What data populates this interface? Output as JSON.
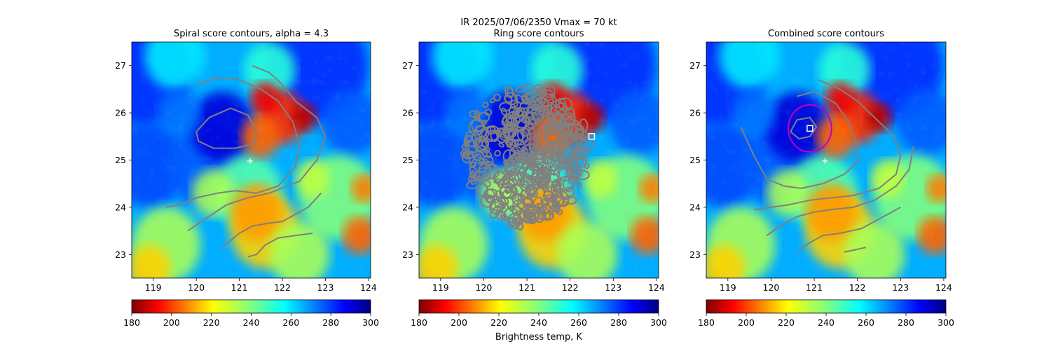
{
  "figure": {
    "suptitle_line1": "IR  2025/07/06/2350    Vmax = 70 kt",
    "colorbar_label": "Brightness temp, K"
  },
  "colors": {
    "contour": "#808080",
    "ring": "#c000c0",
    "marker": "#ffffff"
  },
  "chart_data": [
    {
      "type": "heatmap",
      "title": "Spiral score contours, alpha =  4.3",
      "xlim": [
        118.5,
        124.05
      ],
      "ylim": [
        22.5,
        27.5
      ],
      "xticks": [
        119,
        120,
        121,
        122,
        123,
        124
      ],
      "yticks": [
        23,
        24,
        25,
        26,
        27
      ],
      "xticklabels": [
        "119",
        "120",
        "121",
        "122",
        "123",
        "124"
      ],
      "yticklabels": [
        "23",
        "24",
        "25",
        "26",
        "27"
      ],
      "colormap": "jet_r",
      "clim": [
        180,
        300
      ],
      "colorbar_ticks": [
        180,
        200,
        220,
        240,
        260,
        280,
        300
      ],
      "colorbar_ticklabels": [
        "180",
        "200",
        "220",
        "240",
        "260",
        "280",
        "300"
      ],
      "markers": [
        {
          "symbol": "plus",
          "x": 121.25,
          "y": 24.98
        }
      ],
      "contours": [
        [
          [
            120.0,
            26.6
          ],
          [
            120.5,
            26.75
          ],
          [
            121.0,
            26.7
          ],
          [
            121.5,
            26.5
          ],
          [
            121.9,
            26.25
          ],
          [
            122.25,
            25.8
          ],
          [
            122.4,
            25.3
          ],
          [
            122.3,
            24.85
          ],
          [
            121.9,
            24.45
          ],
          [
            121.4,
            24.3
          ],
          [
            120.9,
            24.35
          ],
          [
            120.5,
            24.3
          ],
          [
            120.0,
            24.2
          ],
          [
            119.6,
            24.05
          ],
          [
            119.3,
            24.0
          ]
        ],
        [
          [
            120.0,
            25.6
          ],
          [
            120.3,
            25.9
          ],
          [
            120.8,
            26.1
          ],
          [
            121.2,
            25.95
          ],
          [
            121.4,
            25.6
          ],
          [
            121.35,
            25.35
          ],
          [
            120.9,
            25.25
          ],
          [
            120.4,
            25.25
          ],
          [
            120.05,
            25.4
          ],
          [
            120.0,
            25.6
          ]
        ],
        [
          [
            121.3,
            27.0
          ],
          [
            121.7,
            26.85
          ],
          [
            122.0,
            26.6
          ],
          [
            122.3,
            26.25
          ],
          [
            122.8,
            25.9
          ],
          [
            123.0,
            25.5
          ],
          [
            122.8,
            25.0
          ],
          [
            122.4,
            24.55
          ],
          [
            121.7,
            24.3
          ],
          [
            121.2,
            24.2
          ],
          [
            120.7,
            24.05
          ],
          [
            120.2,
            23.75
          ],
          [
            119.8,
            23.5
          ]
        ],
        [
          [
            122.9,
            24.3
          ],
          [
            122.6,
            24.0
          ],
          [
            122.0,
            23.7
          ],
          [
            121.6,
            23.65
          ],
          [
            121.3,
            23.6
          ],
          [
            121.0,
            23.45
          ],
          [
            120.8,
            23.3
          ],
          [
            120.6,
            23.15
          ]
        ],
        [
          [
            122.7,
            23.45
          ],
          [
            122.3,
            23.4
          ],
          [
            121.9,
            23.35
          ],
          [
            121.6,
            23.2
          ],
          [
            121.4,
            23.0
          ],
          [
            121.2,
            22.95
          ]
        ]
      ]
    },
    {
      "type": "heatmap",
      "title": "Ring score contours",
      "xlim": [
        118.5,
        124.05
      ],
      "ylim": [
        22.5,
        27.5
      ],
      "xticks": [
        119,
        120,
        121,
        122,
        123,
        124
      ],
      "yticks": [
        23,
        24,
        25,
        26,
        27
      ],
      "xticklabels": [
        "119",
        "120",
        "121",
        "122",
        "123",
        "124"
      ],
      "yticklabels": [
        "23",
        "24",
        "25",
        "26",
        "27"
      ],
      "colormap": "jet_r",
      "clim": [
        180,
        300
      ],
      "colorbar_ticks": [
        180,
        200,
        220,
        240,
        260,
        280,
        300
      ],
      "colorbar_ticklabels": [
        "180",
        "200",
        "220",
        "240",
        "260",
        "280",
        "300"
      ],
      "markers": [
        {
          "symbol": "square",
          "x": 122.5,
          "y": 25.5
        }
      ],
      "dense_contour_region": {
        "center": [
          121.0,
          25.05
        ],
        "extent_x": [
          119.8,
          122.65
        ],
        "extent_y": [
          23.95,
          26.9
        ]
      }
    },
    {
      "type": "heatmap",
      "title": "Combined score contours",
      "xlim": [
        118.5,
        124.05
      ],
      "ylim": [
        22.5,
        27.5
      ],
      "xticks": [
        119,
        120,
        121,
        122,
        123,
        124
      ],
      "yticks": [
        23,
        24,
        25,
        26,
        27
      ],
      "xticklabels": [
        "119",
        "120",
        "121",
        "122",
        "123",
        "124"
      ],
      "yticklabels": [
        "23",
        "24",
        "25",
        "26",
        "27"
      ],
      "colormap": "jet_r",
      "clim": [
        180,
        300
      ],
      "colorbar_ticks": [
        180,
        200,
        220,
        240,
        260,
        280,
        300
      ],
      "colorbar_ticklabels": [
        "180",
        "200",
        "220",
        "240",
        "260",
        "280",
        "300"
      ],
      "markers": [
        {
          "symbol": "plus",
          "x": 121.25,
          "y": 24.98
        },
        {
          "symbol": "square",
          "x": 120.9,
          "y": 25.67
        }
      ],
      "ring": {
        "x": 120.9,
        "y": 25.67,
        "r": 0.5
      },
      "contours": [
        [
          [
            120.6,
            26.35
          ],
          [
            121.0,
            26.45
          ],
          [
            121.5,
            26.2
          ],
          [
            121.8,
            25.8
          ],
          [
            121.95,
            25.4
          ],
          [
            122.05,
            25.0
          ],
          [
            121.7,
            24.7
          ],
          [
            121.2,
            24.5
          ],
          [
            120.7,
            24.4
          ],
          [
            120.3,
            24.45
          ],
          [
            119.9,
            24.6
          ],
          [
            119.6,
            25.1
          ],
          [
            119.4,
            25.5
          ],
          [
            119.3,
            25.7
          ]
        ],
        [
          [
            120.45,
            25.6
          ],
          [
            120.6,
            25.85
          ],
          [
            120.9,
            25.9
          ],
          [
            121.05,
            25.7
          ],
          [
            120.9,
            25.5
          ],
          [
            120.65,
            25.45
          ],
          [
            120.45,
            25.6
          ]
        ],
        [
          [
            121.1,
            26.7
          ],
          [
            121.6,
            26.5
          ],
          [
            122.0,
            26.25
          ],
          [
            122.4,
            25.9
          ],
          [
            122.85,
            25.5
          ],
          [
            123.0,
            25.1
          ],
          [
            122.9,
            24.7
          ],
          [
            122.5,
            24.4
          ],
          [
            121.9,
            24.25
          ],
          [
            121.4,
            24.2
          ],
          [
            120.9,
            24.15
          ],
          [
            120.4,
            24.05
          ],
          [
            120.0,
            24.0
          ],
          [
            119.6,
            23.95
          ]
        ],
        [
          [
            123.3,
            25.3
          ],
          [
            123.2,
            24.8
          ],
          [
            122.9,
            24.45
          ],
          [
            122.4,
            24.15
          ],
          [
            121.9,
            24.0
          ],
          [
            121.4,
            23.95
          ],
          [
            121.0,
            23.9
          ],
          [
            120.6,
            23.8
          ],
          [
            120.2,
            23.6
          ],
          [
            119.9,
            23.4
          ]
        ],
        [
          [
            123.0,
            24.0
          ],
          [
            122.6,
            23.8
          ],
          [
            122.1,
            23.55
          ],
          [
            121.6,
            23.45
          ],
          [
            121.2,
            23.4
          ],
          [
            120.9,
            23.25
          ],
          [
            120.6,
            23.05
          ]
        ],
        [
          [
            122.2,
            23.15
          ],
          [
            121.95,
            23.1
          ],
          [
            121.7,
            23.05
          ]
        ]
      ]
    }
  ]
}
